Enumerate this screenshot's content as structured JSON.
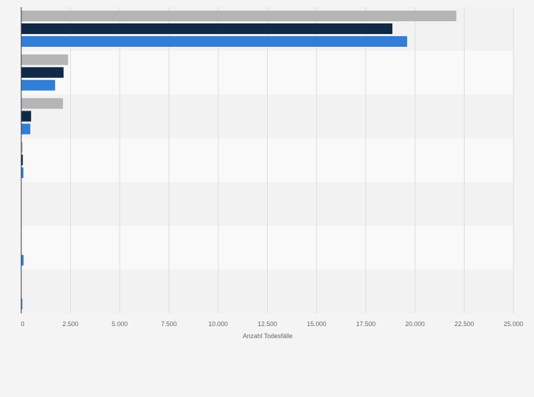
{
  "chart_data": {
    "type": "bar",
    "orientation": "horizontal",
    "categories": [
      "",
      "",
      "",
      "",
      "",
      "",
      ""
    ],
    "series": [
      {
        "values": [
          22100,
          2380,
          2120,
          70,
          0,
          0,
          0
        ],
        "color": "#b5b5b5"
      },
      {
        "values": [
          18850,
          2150,
          500,
          80,
          0,
          0,
          0
        ],
        "color": "#0e2a47"
      },
      {
        "values": [
          19600,
          1720,
          460,
          110,
          0,
          120,
          40
        ],
        "color": "#2f7ed8"
      }
    ],
    "xlabel": "Anzahl Todesfälle",
    "xlim": [
      0,
      25000
    ],
    "xticks": [
      0,
      2500,
      5000,
      7500,
      10000,
      12500,
      15000,
      17500,
      20000,
      22500,
      25000
    ],
    "xtick_labels": [
      "0",
      "2.500",
      "5.000",
      "7.500",
      "10.000",
      "12.500",
      "15.000",
      "17.500",
      "20.000",
      "22.500",
      "25.000"
    ],
    "grid": true,
    "legend": "none"
  }
}
